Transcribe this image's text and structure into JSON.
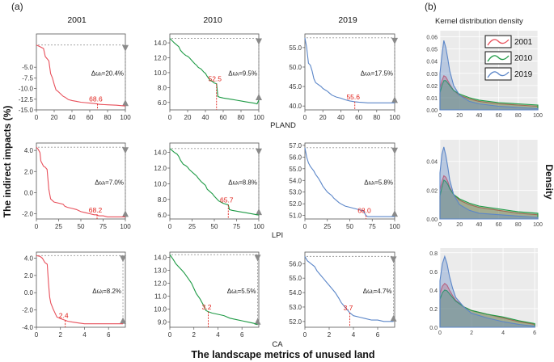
{
  "figure": {
    "label_a": "(a)",
    "label_b": "(b)",
    "y_title": "The indirect impacts (%)",
    "x_title": "The landscape metrics of unused land",
    "density_title": "Kernel  distribution density",
    "density_ylabel": "Density",
    "col_years": [
      "2001",
      "2010",
      "2019"
    ],
    "row_metrics": [
      "PLAND",
      "LPI",
      "CA"
    ]
  },
  "colors": {
    "2001": "#e8505b",
    "2010": "#1e9a45",
    "2019": "#5b86c8",
    "threshold": "#e0201a",
    "ref": "#999999"
  },
  "chart_data": [
    {
      "type": "line",
      "id": "pland-2001",
      "title": "2001",
      "xlim": [
        0,
        100
      ],
      "ylim": [
        -15,
        2.8
      ],
      "xticks": [
        0,
        20,
        40,
        60,
        80,
        100
      ],
      "yticks": [
        -15.0,
        -12.5,
        -10.0,
        -7.5,
        -5.0
      ],
      "x": [
        0,
        4,
        8,
        10,
        12,
        14,
        16,
        18,
        20,
        22,
        24,
        26,
        28,
        30,
        32,
        34,
        36,
        40,
        45,
        50,
        55,
        60,
        65,
        68.6,
        70,
        80,
        90,
        100
      ],
      "y": [
        0.2,
        -0.2,
        -0.6,
        -2.5,
        -3.0,
        -3.5,
        -6.5,
        -7.5,
        -9.0,
        -10.3,
        -10.6,
        -11.0,
        -11.4,
        -11.8,
        -12.0,
        -12.3,
        -12.6,
        -12.8,
        -13.0,
        -13.2,
        -13.3,
        -13.4,
        -13.5,
        -13.6,
        -13.7,
        -13.8,
        -13.9,
        -14.1
      ],
      "threshold_x": 68.6,
      "threshold_label": "68.6",
      "delta_label": "Δωᵢ=20.4%"
    },
    {
      "type": "line",
      "id": "pland-2010",
      "title": "2010",
      "xlim": [
        0,
        100
      ],
      "ylim": [
        5.0,
        15.2
      ],
      "xticks": [
        0,
        20,
        40,
        60,
        80,
        100
      ],
      "yticks": [
        6.0,
        8.0,
        10.0,
        12.0,
        14.0
      ],
      "x": [
        0,
        5,
        10,
        12,
        15,
        18,
        20,
        22,
        25,
        28,
        30,
        32,
        35,
        38,
        40,
        42,
        45,
        48,
        50,
        52.5,
        54,
        56,
        60,
        65,
        70,
        75,
        80,
        85,
        90,
        95,
        98,
        100
      ],
      "y": [
        14.6,
        14.0,
        13.5,
        13.0,
        12.6,
        12.3,
        12.2,
        12.0,
        11.6,
        11.2,
        11.0,
        10.7,
        10.5,
        10.1,
        9.9,
        9.5,
        9.0,
        8.8,
        8.6,
        8.5,
        6.8,
        6.7,
        6.6,
        6.5,
        6.4,
        6.3,
        6.2,
        6.1,
        6.0,
        5.9,
        5.8,
        6.3
      ],
      "threshold_x": 52.5,
      "threshold_label": "52.5",
      "delta_label": "Δωᵢ=9.5%"
    },
    {
      "type": "line",
      "id": "pland-2019",
      "title": "2019",
      "xlim": [
        0,
        100
      ],
      "ylim": [
        39.0,
        58.5
      ],
      "xticks": [
        0,
        20,
        40,
        60,
        80,
        100
      ],
      "yticks": [
        40.0,
        45.0,
        50.0,
        55.0
      ],
      "x": [
        0,
        2,
        4,
        6,
        8,
        10,
        12,
        15,
        18,
        20,
        22,
        25,
        28,
        30,
        35,
        40,
        45,
        50,
        55.6,
        60,
        65,
        70,
        80,
        90,
        100
      ],
      "y": [
        57.5,
        55.0,
        51.0,
        50.5,
        49.0,
        47.0,
        46.0,
        45.5,
        45.0,
        44.5,
        44.2,
        43.8,
        43.2,
        42.8,
        42.3,
        42.0,
        41.6,
        41.3,
        41.1,
        41.0,
        40.9,
        40.8,
        40.8,
        40.8,
        40.8
      ],
      "threshold_x": 55.6,
      "threshold_label": "55.6",
      "delta_label": "Δωᵢ=17.5%"
    },
    {
      "type": "line",
      "id": "lpi-2001",
      "title": "",
      "xlim": [
        0,
        100
      ],
      "ylim": [
        -2.5,
        4.7
      ],
      "xticks": [
        0,
        25,
        50,
        75,
        100
      ],
      "yticks": [
        -2.0,
        0.0,
        2.0,
        4.0
      ],
      "x": [
        0,
        2,
        4,
        5,
        8,
        10,
        12,
        14,
        16,
        20,
        25,
        30,
        32,
        35,
        40,
        45,
        50,
        55,
        60,
        65,
        68.2,
        70,
        75,
        80,
        90,
        100
      ],
      "y": [
        4.3,
        4.1,
        3.8,
        3.0,
        2.5,
        2.4,
        2.2,
        0.3,
        -0.6,
        -0.9,
        -1.0,
        -1.1,
        -1.3,
        -1.4,
        -1.5,
        -1.6,
        -1.8,
        -1.9,
        -2.0,
        -2.1,
        -2.1,
        -2.2,
        -2.2,
        -2.3,
        -2.3,
        -2.3
      ],
      "threshold_x": 68.2,
      "threshold_label": "68.2",
      "delta_label": "Δωᵢ=7.0%"
    },
    {
      "type": "line",
      "id": "lpi-2010",
      "title": "",
      "xlim": [
        0,
        100
      ],
      "ylim": [
        5.5,
        15.2
      ],
      "xticks": [
        0,
        25,
        50,
        75,
        100
      ],
      "yticks": [
        6.0,
        8.0,
        10.0,
        12.0,
        14.0
      ],
      "x": [
        0,
        5,
        8,
        10,
        12,
        15,
        18,
        20,
        22,
        25,
        28,
        30,
        32,
        35,
        38,
        40,
        42,
        45,
        48,
        50,
        55,
        60,
        65.7,
        67,
        70,
        75,
        80,
        85,
        90,
        95,
        100
      ],
      "y": [
        14.5,
        14.0,
        13.8,
        13.5,
        13.0,
        12.5,
        12.3,
        12.1,
        11.8,
        11.5,
        11.2,
        11.0,
        10.7,
        10.3,
        10.0,
        9.8,
        9.3,
        9.0,
        8.7,
        8.4,
        7.8,
        7.5,
        7.3,
        6.7,
        6.6,
        6.5,
        6.4,
        6.3,
        6.2,
        6.1,
        6.0
      ],
      "threshold_x": 65.7,
      "threshold_label": "65.7",
      "delta_label": "Δωᵢ=8.8%"
    },
    {
      "type": "line",
      "id": "lpi-2019",
      "title": "",
      "xlim": [
        0,
        100
      ],
      "ylim": [
        50.7,
        57.2
      ],
      "xticks": [
        0,
        25,
        50,
        75,
        100
      ],
      "yticks": [
        51.0,
        52.0,
        53.0,
        54.0,
        55.0,
        56.0,
        57.0
      ],
      "x": [
        0,
        2,
        4,
        6,
        8,
        10,
        12,
        15,
        18,
        20,
        25,
        30,
        32,
        35,
        38,
        40,
        45,
        50,
        55,
        60,
        65,
        68,
        70,
        80,
        90,
        100
      ],
      "y": [
        56.8,
        56.0,
        55.5,
        55.2,
        55.0,
        54.8,
        54.5,
        54.2,
        53.8,
        53.5,
        53.0,
        52.7,
        52.5,
        52.3,
        52.1,
        52.0,
        51.8,
        51.7,
        51.6,
        51.5,
        51.4,
        51.0,
        50.9,
        50.9,
        50.9,
        50.9
      ],
      "threshold_x": 68.0,
      "threshold_label": "68.0",
      "delta_label": "Δωᵢ=5.8%"
    },
    {
      "type": "line",
      "id": "ca-2001",
      "title": "",
      "xlim": [
        0,
        7.4
      ],
      "ylim": [
        -4.0,
        4.7
      ],
      "xticks": [
        0,
        2,
        4,
        6
      ],
      "yticks": [
        -4.0,
        -2.0,
        0.0,
        2.0,
        4.0
      ],
      "x": [
        0,
        0.3,
        0.5,
        0.7,
        0.9,
        1.0,
        1.1,
        1.2,
        1.4,
        1.5,
        1.7,
        2.0,
        2.2,
        2.4,
        2.6,
        3.0,
        3.5,
        4.0,
        5.0,
        6.0,
        7.2
      ],
      "y": [
        4.3,
        4.2,
        4.0,
        3.5,
        3.3,
        1.2,
        -0.5,
        -1.2,
        -1.9,
        -2.2,
        -2.8,
        -3.0,
        -3.1,
        -3.2,
        -3.3,
        -3.4,
        -3.5,
        -3.6,
        -3.6,
        -3.6,
        -3.6
      ],
      "threshold_x": 2.4,
      "threshold_label": "2.4",
      "delta_label": "Δωᵢ=8.2%"
    },
    {
      "type": "line",
      "id": "ca-2010",
      "title": "",
      "xlim": [
        0,
        7.4
      ],
      "ylim": [
        8.6,
        14.4
      ],
      "xticks": [
        0,
        2,
        4,
        6
      ],
      "yticks": [
        9.0,
        10.0,
        11.0,
        12.0,
        13.0,
        14.0
      ],
      "x": [
        0,
        0.3,
        0.5,
        0.8,
        1.0,
        1.2,
        1.5,
        1.8,
        2.0,
        2.2,
        2.5,
        2.8,
        3.0,
        3.2,
        3.5,
        4.0,
        4.5,
        5.0,
        5.5,
        6.0,
        6.5,
        7.0,
        7.3
      ],
      "y": [
        14.2,
        13.8,
        13.5,
        13.2,
        13.0,
        12.8,
        12.4,
        12.0,
        11.6,
        11.2,
        10.8,
        10.3,
        9.9,
        9.8,
        9.7,
        9.6,
        9.5,
        9.3,
        9.2,
        9.1,
        9.0,
        8.9,
        8.8
      ],
      "threshold_x": 3.2,
      "threshold_label": "3.2",
      "delta_label": "Δωᵢ=5.5%"
    },
    {
      "type": "line",
      "id": "ca-2019",
      "title": "",
      "xlim": [
        0,
        7.4
      ],
      "ylim": [
        51.6,
        56.8
      ],
      "xticks": [
        0,
        2,
        4,
        6
      ],
      "yticks": [
        52.0,
        53.0,
        54.0,
        55.0,
        56.0
      ],
      "x": [
        0,
        0.2,
        0.5,
        0.8,
        1.0,
        1.3,
        1.5,
        1.8,
        2.0,
        2.3,
        2.5,
        2.8,
        3.0,
        3.3,
        3.5,
        3.7,
        4.0,
        4.5,
        5.0,
        5.5,
        6.0,
        6.5,
        7.0,
        7.3
      ],
      "y": [
        56.5,
        56.2,
        56.0,
        55.8,
        55.5,
        55.2,
        55.0,
        54.7,
        54.5,
        54.2,
        54.0,
        53.6,
        53.3,
        53.0,
        52.8,
        52.6,
        52.4,
        52.3,
        52.2,
        52.1,
        52.1,
        52.0,
        52.0,
        52.0
      ],
      "threshold_x": 3.7,
      "threshold_label": "3.7",
      "delta_label": "Δωᵢ=4.7%"
    },
    {
      "type": "area",
      "id": "density-pland",
      "xlim": [
        0,
        100
      ],
      "ylim": [
        0,
        0.065
      ],
      "xticks": [
        0,
        20,
        40,
        60,
        80,
        100
      ],
      "yticks": [
        0.0,
        0.01,
        0.02,
        0.03,
        0.04,
        0.05,
        0.06
      ],
      "legend": [
        "2001",
        "2010",
        "2019"
      ],
      "x": [
        0,
        2,
        4,
        6,
        8,
        10,
        14,
        20,
        30,
        40,
        60,
        80,
        100
      ],
      "series": [
        {
          "name": "2001",
          "values": [
            0.018,
            0.024,
            0.028,
            0.027,
            0.024,
            0.021,
            0.016,
            0.012,
            0.009,
            0.007,
            0.005,
            0.004,
            0.003
          ]
        },
        {
          "name": "2010",
          "values": [
            0.014,
            0.02,
            0.024,
            0.024,
            0.022,
            0.02,
            0.016,
            0.013,
            0.01,
            0.008,
            0.006,
            0.005,
            0.004
          ]
        },
        {
          "name": "2019",
          "values": [
            0.03,
            0.045,
            0.057,
            0.051,
            0.042,
            0.032,
            0.02,
            0.012,
            0.007,
            0.005,
            0.003,
            0.002,
            0.001
          ]
        }
      ]
    },
    {
      "type": "area",
      "id": "density-lpi",
      "xlim": [
        0,
        100
      ],
      "ylim": [
        0,
        0.055
      ],
      "xticks": [
        0,
        20,
        40,
        60,
        80,
        100
      ],
      "yticks": [
        0.0,
        0.02,
        0.04
      ],
      "x": [
        0,
        2,
        4,
        6,
        8,
        10,
        14,
        20,
        30,
        40,
        60,
        80,
        100
      ],
      "series": [
        {
          "name": "2001",
          "values": [
            0.02,
            0.026,
            0.03,
            0.029,
            0.026,
            0.022,
            0.017,
            0.013,
            0.01,
            0.008,
            0.006,
            0.004,
            0.003
          ]
        },
        {
          "name": "2010",
          "values": [
            0.016,
            0.022,
            0.027,
            0.026,
            0.024,
            0.021,
            0.017,
            0.014,
            0.011,
            0.009,
            0.007,
            0.005,
            0.004
          ]
        },
        {
          "name": "2019",
          "values": [
            0.032,
            0.045,
            0.05,
            0.044,
            0.036,
            0.027,
            0.017,
            0.01,
            0.006,
            0.004,
            0.003,
            0.002,
            0.001
          ]
        }
      ]
    },
    {
      "type": "area",
      "id": "density-ca",
      "xlim": [
        0,
        6.2
      ],
      "ylim": [
        0,
        0.85
      ],
      "xticks": [
        0,
        2,
        4,
        6
      ],
      "yticks": [
        0.0,
        0.2,
        0.4,
        0.6,
        0.8
      ],
      "x": [
        0,
        0.15,
        0.3,
        0.45,
        0.6,
        0.8,
        1.0,
        1.5,
        2.0,
        3.0,
        4.0,
        5.0,
        6.0
      ],
      "series": [
        {
          "name": "2001",
          "values": [
            0.36,
            0.44,
            0.47,
            0.45,
            0.4,
            0.34,
            0.29,
            0.22,
            0.18,
            0.14,
            0.1,
            0.06,
            0.03
          ]
        },
        {
          "name": "2010",
          "values": [
            0.3,
            0.37,
            0.4,
            0.39,
            0.36,
            0.32,
            0.28,
            0.22,
            0.18,
            0.14,
            0.11,
            0.07,
            0.04
          ]
        },
        {
          "name": "2019",
          "values": [
            0.5,
            0.68,
            0.76,
            0.68,
            0.55,
            0.42,
            0.32,
            0.22,
            0.15,
            0.1,
            0.06,
            0.03,
            0.01
          ]
        }
      ]
    }
  ]
}
